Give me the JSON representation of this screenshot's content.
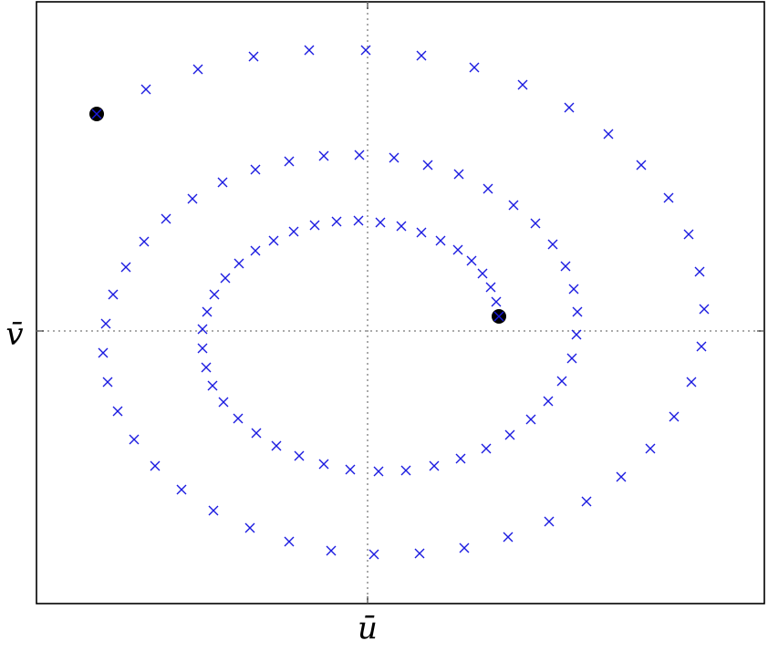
{
  "chart_data": {
    "type": "scatter",
    "xlabel": "ū",
    "ylabel": "v̄",
    "xlim": [
      -3.63,
      4.35
    ],
    "ylim": [
      -2.99,
      3.61
    ],
    "xticks": [
      0
    ],
    "yticks": [
      0
    ],
    "grid": true,
    "mark_endpoints": true,
    "series": [
      {
        "color": "#1a1ae0",
        "x": [
          -2.97,
          -2.43,
          -1.86,
          -1.25,
          -0.64,
          -0.02,
          0.59,
          1.17,
          1.7,
          2.21,
          2.64,
          3.0,
          3.3,
          3.52,
          3.64,
          3.69,
          3.66,
          3.55,
          3.36,
          3.1,
          2.78,
          2.4,
          1.99,
          1.54,
          1.06,
          0.57,
          0.07,
          -0.4,
          -0.86,
          -1.29,
          -1.69,
          -2.04,
          -2.33,
          -2.56,
          -2.74,
          -2.85,
          -2.9,
          -2.87,
          -2.79,
          -2.65,
          -2.45,
          -2.21,
          -1.92,
          -1.59,
          -1.23,
          -0.86,
          -0.48,
          -0.09,
          0.29,
          0.66,
          1.0,
          1.32,
          1.6,
          1.84,
          2.03,
          2.17,
          2.26,
          2.3,
          2.29,
          2.24,
          2.13,
          1.98,
          1.79,
          1.56,
          1.3,
          1.02,
          0.73,
          0.42,
          0.12,
          -0.19,
          -0.48,
          -0.75,
          -1.0,
          -1.22,
          -1.42,
          -1.58,
          -1.7,
          -1.77,
          -1.81,
          -1.81,
          -1.76,
          -1.68,
          -1.56,
          -1.41,
          -1.23,
          -1.03,
          -0.81,
          -0.58,
          -0.34,
          -0.1,
          0.14,
          0.37,
          0.59,
          0.8,
          0.99,
          1.14,
          1.26,
          1.35,
          1.41,
          1.44
        ],
        "values": [
          2.38,
          2.65,
          2.87,
          3.01,
          3.08,
          3.08,
          3.02,
          2.89,
          2.7,
          2.45,
          2.16,
          1.82,
          1.46,
          1.06,
          0.65,
          0.24,
          -0.17,
          -0.56,
          -0.94,
          -1.29,
          -1.6,
          -1.87,
          -2.09,
          -2.26,
          -2.38,
          -2.44,
          -2.45,
          -2.41,
          -2.31,
          -2.16,
          -1.97,
          -1.74,
          -1.48,
          -1.19,
          -0.88,
          -0.56,
          -0.24,
          0.08,
          0.4,
          0.7,
          0.98,
          1.23,
          1.45,
          1.63,
          1.77,
          1.86,
          1.92,
          1.93,
          1.9,
          1.82,
          1.72,
          1.56,
          1.38,
          1.18,
          0.95,
          0.71,
          0.46,
          0.21,
          -0.04,
          -0.3,
          -0.55,
          -0.77,
          -0.97,
          -1.14,
          -1.29,
          -1.4,
          -1.48,
          -1.53,
          -1.54,
          -1.52,
          -1.46,
          -1.37,
          -1.26,
          -1.12,
          -0.96,
          -0.78,
          -0.6,
          -0.4,
          -0.19,
          0.02,
          0.21,
          0.4,
          0.58,
          0.74,
          0.88,
          0.99,
          1.09,
          1.16,
          1.2,
          1.21,
          1.19,
          1.15,
          1.08,
          0.99,
          0.89,
          0.77,
          0.63,
          0.48,
          0.32,
          0.16
        ]
      }
    ]
  }
}
